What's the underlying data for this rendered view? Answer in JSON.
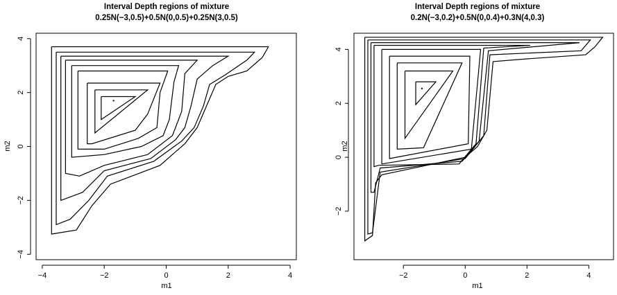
{
  "chart_data": [
    {
      "type": "contour",
      "title": "Interval Depth regions of mixture",
      "subtitle": "0.25N(−3,0.5)+0.5N(0,0.5)+0.25N(3,0.5)",
      "xlabel": "m1",
      "ylabel": "m2",
      "xlim": [
        -4.2,
        4.2
      ],
      "ylim": [
        -4.2,
        4.2
      ],
      "xticks": [
        -4,
        -2,
        0,
        2,
        4
      ],
      "yticks": [
        -4,
        -2,
        0,
        2,
        4
      ],
      "xtick_labels": [
        "−4",
        "−2",
        "0",
        "2",
        "4"
      ],
      "ytick_labels": [
        "−4",
        "−2",
        "0",
        "2",
        "4"
      ],
      "center_point": [
        -1.7,
        1.7
      ],
      "contours": [
        [
          [
            -3.7,
            3.7
          ],
          [
            3.3,
            3.7
          ],
          [
            3.1,
            3.3
          ],
          [
            2.6,
            2.8
          ],
          [
            2.0,
            2.6
          ],
          [
            1.6,
            2.3
          ],
          [
            1.3,
            1.5
          ],
          [
            1.0,
            0.7
          ],
          [
            0.6,
            0.1
          ],
          [
            -0.2,
            -0.7
          ],
          [
            -1.8,
            -1.4
          ],
          [
            -2.4,
            -2.2
          ],
          [
            -2.9,
            -3.1
          ],
          [
            -3.7,
            -3.25
          ],
          [
            -3.7,
            3.7
          ]
        ],
        [
          [
            -3.55,
            3.5
          ],
          [
            2.85,
            3.5
          ],
          [
            2.6,
            3.2
          ],
          [
            1.9,
            2.65
          ],
          [
            1.4,
            2.3
          ],
          [
            1.2,
            1.5
          ],
          [
            0.9,
            0.7
          ],
          [
            0.5,
            0.2
          ],
          [
            -0.4,
            -0.55
          ],
          [
            -1.9,
            -1.1
          ],
          [
            -2.5,
            -2.0
          ],
          [
            -3.1,
            -2.7
          ],
          [
            -3.55,
            -2.9
          ],
          [
            -3.55,
            3.5
          ]
        ],
        [
          [
            -3.4,
            3.35
          ],
          [
            2.0,
            3.35
          ],
          [
            1.5,
            3.0
          ],
          [
            1.0,
            2.5
          ],
          [
            0.8,
            1.5
          ],
          [
            0.6,
            0.7
          ],
          [
            0.3,
            0.25
          ],
          [
            -0.5,
            -0.45
          ],
          [
            -2.0,
            -0.9
          ],
          [
            -2.7,
            -1.7
          ],
          [
            -3.4,
            -2.0
          ],
          [
            -3.4,
            3.35
          ]
        ],
        [
          [
            -3.25,
            3.2
          ],
          [
            1.0,
            3.2
          ],
          [
            0.6,
            2.7
          ],
          [
            0.5,
            1.3
          ],
          [
            0.2,
            0.4
          ],
          [
            -0.6,
            -0.3
          ],
          [
            -2.0,
            -0.7
          ],
          [
            -2.8,
            -1.1
          ],
          [
            -3.25,
            -1.0
          ],
          [
            -3.25,
            3.2
          ]
        ],
        [
          [
            -3.05,
            3.0
          ],
          [
            0.4,
            3.0
          ],
          [
            0.25,
            2.4
          ],
          [
            0.1,
            1.0
          ],
          [
            -0.1,
            0.4
          ],
          [
            -0.8,
            0.0
          ],
          [
            -2.0,
            -0.3
          ],
          [
            -3.05,
            -0.4
          ],
          [
            -3.05,
            3.0
          ]
        ],
        [
          [
            -2.85,
            2.8
          ],
          [
            0.05,
            2.8
          ],
          [
            -0.2,
            2.0
          ],
          [
            -0.3,
            0.7
          ],
          [
            -0.9,
            0.3
          ],
          [
            -2.0,
            -0.1
          ],
          [
            -2.85,
            -0.1
          ],
          [
            -2.85,
            2.8
          ]
        ],
        [
          [
            -2.55,
            2.35
          ],
          [
            -0.2,
            2.35
          ],
          [
            -0.6,
            1.2
          ],
          [
            -1.0,
            0.6
          ],
          [
            -2.4,
            0.1
          ],
          [
            -2.55,
            0.1
          ],
          [
            -2.55,
            2.35
          ]
        ],
        [
          [
            -2.3,
            2.1
          ],
          [
            -0.6,
            2.1
          ],
          [
            -2.3,
            0.5
          ],
          [
            -2.3,
            2.1
          ]
        ],
        [
          [
            -2.1,
            1.85
          ],
          [
            -1.0,
            1.85
          ],
          [
            -2.1,
            1.0
          ],
          [
            -2.1,
            1.85
          ]
        ]
      ]
    },
    {
      "type": "contour",
      "title": "Interval Depth regions of mixture",
      "subtitle": "0.2N(−3,0.2)+0.5N(0,0.4)+0.3N(4,0.3)",
      "xlabel": "m1",
      "ylabel": "m2",
      "xlim": [
        -3.6,
        4.8
      ],
      "ylim": [
        -3.8,
        4.6
      ],
      "xticks": [
        -2,
        0,
        2,
        4
      ],
      "yticks": [
        -2,
        0,
        2,
        4
      ],
      "xtick_labels": [
        "−2",
        "0",
        "2",
        "4"
      ],
      "ytick_labels": [
        "−2",
        "0",
        "2",
        "4"
      ],
      "center_point": [
        -1.4,
        2.55
      ],
      "contours": [
        [
          [
            -3.25,
            4.45
          ],
          [
            4.45,
            4.45
          ],
          [
            4.2,
            4.1
          ],
          [
            3.9,
            3.8
          ],
          [
            2.0,
            3.65
          ],
          [
            0.9,
            3.55
          ],
          [
            0.7,
            1.0
          ],
          [
            0.4,
            0.4
          ],
          [
            0.0,
            0.0
          ],
          [
            -2.7,
            -0.65
          ],
          [
            -2.9,
            -0.95
          ],
          [
            -3.0,
            -2.9
          ],
          [
            -3.25,
            -3.1
          ],
          [
            -3.25,
            4.45
          ]
        ],
        [
          [
            -3.15,
            4.35
          ],
          [
            4.05,
            4.35
          ],
          [
            3.75,
            3.95
          ],
          [
            0.8,
            3.8
          ],
          [
            0.6,
            0.8
          ],
          [
            0.0,
            -0.05
          ],
          [
            -2.75,
            -0.55
          ],
          [
            -3.0,
            -2.8
          ],
          [
            -3.15,
            -2.85
          ],
          [
            -3.15,
            4.35
          ]
        ],
        [
          [
            -3.05,
            4.25
          ],
          [
            3.7,
            4.25
          ],
          [
            0.75,
            3.95
          ],
          [
            0.45,
            0.6
          ],
          [
            -0.1,
            -0.15
          ],
          [
            -2.75,
            -0.4
          ],
          [
            -2.95,
            -1.3
          ],
          [
            -3.05,
            -1.3
          ],
          [
            -3.05,
            4.25
          ]
        ],
        [
          [
            -2.95,
            4.15
          ],
          [
            2.1,
            4.15
          ],
          [
            0.6,
            4.05
          ],
          [
            0.35,
            0.5
          ],
          [
            -0.2,
            -0.25
          ],
          [
            -2.8,
            -0.3
          ],
          [
            -2.95,
            -0.35
          ],
          [
            -2.95,
            4.15
          ]
        ],
        [
          [
            -2.7,
            4.0
          ],
          [
            0.5,
            4.0
          ],
          [
            0.2,
            0.3
          ],
          [
            -2.7,
            -0.25
          ],
          [
            -2.7,
            4.0
          ]
        ],
        [
          [
            -2.45,
            3.75
          ],
          [
            0.15,
            3.75
          ],
          [
            0.1,
            0.5
          ],
          [
            -2.45,
            -0.05
          ],
          [
            -2.45,
            3.75
          ]
        ],
        [
          [
            -2.2,
            3.5
          ],
          [
            -0.1,
            3.5
          ],
          [
            -1.35,
            0.35
          ],
          [
            -2.2,
            0.3
          ],
          [
            -2.2,
            3.5
          ]
        ],
        [
          [
            -1.95,
            3.2
          ],
          [
            -0.4,
            3.2
          ],
          [
            -1.95,
            0.7
          ],
          [
            -1.95,
            3.2
          ]
        ],
        [
          [
            -1.6,
            2.8
          ],
          [
            -0.95,
            2.8
          ],
          [
            -1.6,
            1.95
          ],
          [
            -1.6,
            2.8
          ]
        ]
      ]
    }
  ]
}
